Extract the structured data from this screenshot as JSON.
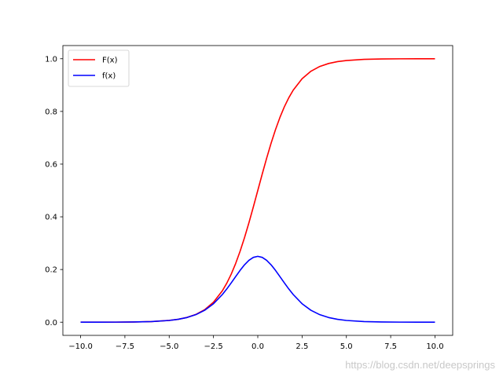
{
  "watermark": "https://blog.csdn.net/deepsprings",
  "chart_data": {
    "type": "line",
    "title": "",
    "xlabel": "",
    "ylabel": "",
    "xlim": [
      -11.0,
      11.0
    ],
    "ylim": [
      -0.05,
      1.05
    ],
    "x_ticks": [
      -10.0,
      -7.5,
      -5.0,
      -2.5,
      0.0,
      2.5,
      5.0,
      7.5,
      10.0
    ],
    "x_tick_labels": [
      "−10.0",
      "−7.5",
      "−5.0",
      "−2.5",
      "0.0",
      "2.5",
      "5.0",
      "7.5",
      "10.0"
    ],
    "y_ticks": [
      0.0,
      0.2,
      0.4,
      0.6,
      0.8,
      1.0
    ],
    "y_tick_labels": [
      "0.0",
      "0.2",
      "0.4",
      "0.6",
      "0.8",
      "1.0"
    ],
    "grid": false,
    "legend_position": "top-left",
    "x": [
      -10,
      -9,
      -8,
      -7,
      -6,
      -5,
      -4.5,
      -4,
      -3.5,
      -3,
      -2.5,
      -2,
      -1.75,
      -1.5,
      -1.25,
      -1,
      -0.75,
      -0.5,
      -0.25,
      0,
      0.25,
      0.5,
      0.75,
      1,
      1.25,
      1.5,
      1.75,
      2,
      2.5,
      3,
      3.5,
      4,
      4.5,
      5,
      6,
      7,
      8,
      9,
      10
    ],
    "series": [
      {
        "name": "F(x)",
        "color": "#ff0000",
        "values": [
          0.0,
          0.0001,
          0.0003,
          0.0009,
          0.0025,
          0.0067,
          0.011,
          0.018,
          0.0293,
          0.0474,
          0.0759,
          0.1192,
          0.148,
          0.1824,
          0.2227,
          0.2689,
          0.3208,
          0.3775,
          0.4378,
          0.5,
          0.5622,
          0.6225,
          0.6792,
          0.7311,
          0.7773,
          0.8176,
          0.852,
          0.8808,
          0.9241,
          0.9526,
          0.9707,
          0.982,
          0.989,
          0.9933,
          0.9975,
          0.9991,
          0.9997,
          0.9999,
          1.0
        ]
      },
      {
        "name": "f(x)",
        "color": "#0000ff",
        "values": [
          0.0,
          0.0001,
          0.0003,
          0.0009,
          0.0025,
          0.0066,
          0.0109,
          0.0177,
          0.0285,
          0.0452,
          0.0701,
          0.105,
          0.1261,
          0.1491,
          0.1731,
          0.1966,
          0.2179,
          0.235,
          0.2461,
          0.25,
          0.2461,
          0.235,
          0.2179,
          0.1966,
          0.1731,
          0.1491,
          0.1261,
          0.105,
          0.0701,
          0.0452,
          0.0285,
          0.0177,
          0.0109,
          0.0066,
          0.0025,
          0.0009,
          0.0003,
          0.0001,
          0.0
        ]
      }
    ]
  }
}
